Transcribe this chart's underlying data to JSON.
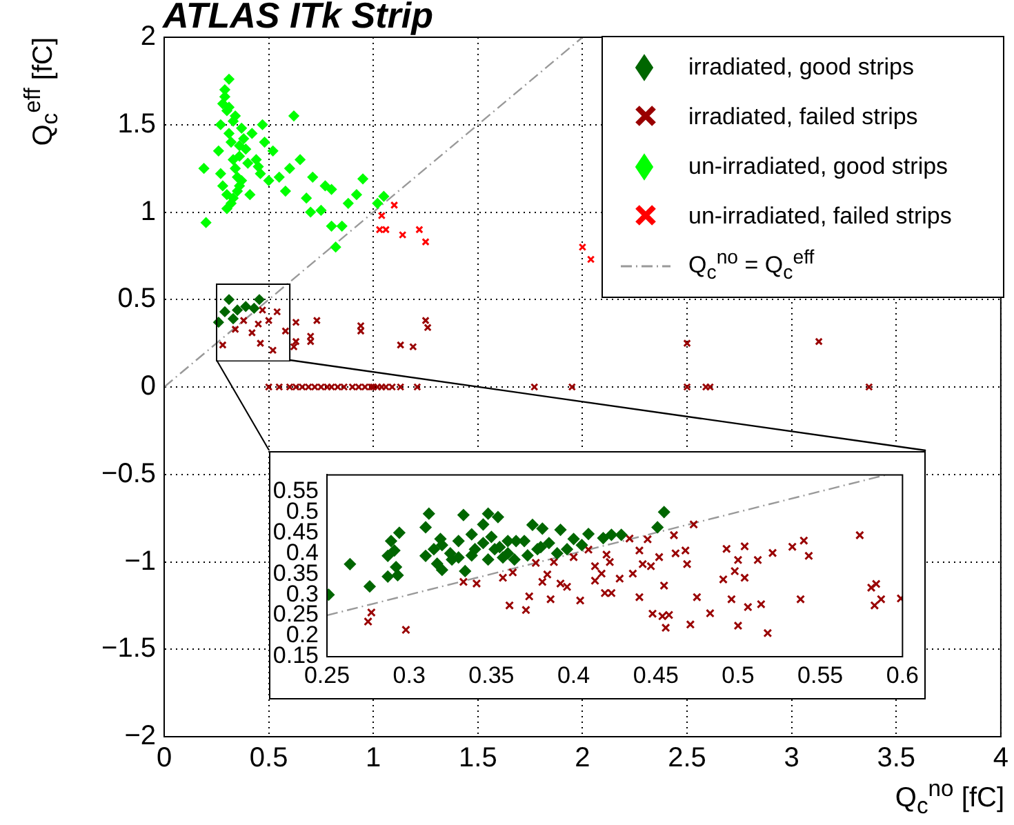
{
  "chart_data": [
    {
      "type": "scatter",
      "title": "ATLAS ITk Strip",
      "xlabel": "Q$_{c}$$^{no}$ [fC]",
      "ylabel": "Q$_{c}$$^{eff}$ [fC]",
      "xlim": [
        0,
        4
      ],
      "ylim": [
        -2,
        2
      ],
      "xticks": [
        0,
        0.5,
        1,
        1.5,
        2,
        2.5,
        3,
        3.5,
        4
      ],
      "yticks": [
        {
          "value": -2,
          "label": "−2"
        },
        {
          "value": -1.5,
          "label": "−1.5"
        },
        {
          "value": -1,
          "label": "−1"
        },
        {
          "value": -0.5,
          "label": "−0.5"
        },
        0,
        0.5,
        1,
        1.5,
        2
      ],
      "grid": true,
      "legend": "top right",
      "series": [
        {
          "name": "irradiated, good strips",
          "color": "#006600",
          "marker": "diamond",
          "x": [
            0.26,
            0.29,
            0.31,
            0.35,
            0.39,
            0.43,
            0.455,
            0.33
          ],
          "values": [
            0.37,
            0.43,
            0.5,
            0.44,
            0.46,
            0.45,
            0.5,
            0.39
          ]
        },
        {
          "name": "irradiated, failed strips",
          "color": "#990000",
          "marker": "cross",
          "x": [
            0.28,
            0.34,
            0.38,
            0.42,
            0.46,
            0.47,
            0.5,
            0.52,
            0.54,
            0.58,
            0.45,
            0.63,
            0.73,
            0.94,
            0.94,
            1.13,
            1.19,
            1.25,
            1.26,
            0.7,
            0.7,
            0.63,
            0.62,
            2.5,
            3.13,
            0.5,
            0.55,
            0.6,
            0.63,
            0.66,
            0.69,
            0.72,
            0.75,
            0.78,
            0.8,
            0.83,
            0.86,
            0.9,
            0.93,
            0.96,
            0.99,
            1.0,
            1.02,
            1.04,
            1.06,
            1.09,
            1.13,
            1.21,
            1.77,
            1.95,
            2.5,
            2.59,
            2.61,
            3.37
          ],
          "values": [
            0.24,
            0.33,
            0.38,
            0.31,
            0.25,
            0.44,
            0.38,
            0.21,
            0.43,
            0.32,
            0.36,
            0.37,
            0.38,
            0.35,
            0.32,
            0.24,
            0.23,
            0.38,
            0.34,
            0.29,
            0.26,
            0.26,
            0.23,
            0.25,
            0.26,
            0,
            0,
            0,
            0,
            0,
            0,
            0,
            0,
            0,
            0,
            0,
            0,
            0,
            0,
            0,
            0,
            0,
            0,
            0,
            0,
            0,
            0,
            0,
            0,
            0,
            0,
            0,
            0,
            0
          ]
        },
        {
          "name": "un-irradiated, good strips",
          "color": "#00ff00",
          "marker": "diamond",
          "x": [
            0.19,
            0.2,
            0.31,
            0.26,
            0.27,
            0.28,
            0.29,
            0.3,
            0.31,
            0.32,
            0.33,
            0.34,
            0.35,
            0.36,
            0.37,
            0.28,
            0.3,
            0.32,
            0.34,
            0.36,
            0.38,
            0.4,
            0.27,
            0.29,
            0.31,
            0.33,
            0.35,
            0.37,
            0.39,
            0.42,
            0.44,
            0.46,
            0.48,
            0.5,
            0.3,
            0.33,
            0.36,
            0.41,
            0.45,
            0.52,
            0.55,
            0.58,
            0.62,
            0.65,
            0.68,
            0.71,
            0.7,
            0.77,
            0.8,
            0.82,
            0.75,
            0.85,
            0.88,
            0.92,
            0.95,
            1.02,
            1.05,
            0.8,
            0.6,
            0.47
          ],
          "values": [
            1.25,
            0.94,
            1.76,
            1.35,
            1.5,
            1.62,
            1.7,
            1.58,
            1.45,
            1.4,
            1.3,
            1.55,
            1.2,
            1.38,
            1.48,
            1.15,
            1.1,
            1.05,
            1.25,
            1.32,
            1.42,
            1.28,
            1.22,
            1.66,
            1.6,
            1.52,
            1.12,
            1.18,
            1.36,
            1.45,
            1.3,
            1.22,
            1.4,
            1.18,
            1.02,
            1.08,
            1.15,
            1.1,
            1.26,
            1.35,
            1.2,
            1.12,
            1.55,
            1.3,
            1.08,
            1.2,
            1.0,
            1.15,
            1.13,
            0.8,
            1.01,
            0.92,
            1.05,
            1.1,
            1.19,
            1.05,
            1.09,
            0.92,
            1.25,
            1.5
          ]
        },
        {
          "name": "un-irradiated, failed strips",
          "color": "#ff0000",
          "marker": "cross",
          "x": [
            1.1,
            1.04,
            1.03,
            1.06,
            1.14,
            1.22,
            1.25,
            2.0,
            2.04
          ],
          "values": [
            1.04,
            0.98,
            0.9,
            0.9,
            0.87,
            0.9,
            0.83,
            0.8,
            0.73
          ]
        },
        {
          "name": "Q$_{c}$$^{no}$ = Q$_{c}$$^{eff}$",
          "type": "line",
          "color": "#999999",
          "line_style": "dashed",
          "x": [
            0,
            2
          ],
          "values": [
            0,
            2
          ]
        }
      ]
    },
    {
      "type": "scatter",
      "xlim": [
        0.25,
        0.6
      ],
      "ylim": [
        0.15,
        0.59
      ],
      "xticks": [
        0.25,
        0.3,
        0.35,
        0.4,
        0.45,
        0.5,
        0.55,
        0.6
      ],
      "yticks": [
        0.15,
        0.2,
        0.25,
        0.3,
        0.35,
        0.4,
        0.45,
        0.5,
        0.55
      ],
      "series": [
        {
          "color": "#006600",
          "marker": "diamond",
          "x": [
            0.251,
            0.264,
            0.276,
            0.287,
            0.289,
            0.287,
            0.291,
            0.292,
            0.294,
            0.293,
            0.312,
            0.31,
            0.31,
            0.315,
            0.317,
            0.319,
            0.32,
            0.326,
            0.333,
            0.334,
            0.338,
            0.345,
            0.348,
            0.352,
            0.354,
            0.357,
            0.36,
            0.364,
            0.37,
            0.375,
            0.378,
            0.381,
            0.385,
            0.392,
            0.396,
            0.4,
            0.405,
            0.409,
            0.418,
            0.423,
            0.429,
            0.451,
            0.455,
            0.32,
            0.33,
            0.34,
            0.35,
            0.36,
            0.33,
            0.345,
            0.355,
            0.365,
            0.325,
            0.338,
            0.348,
            0.372,
            0.38,
            0.39
          ],
          "values": [
            0.3,
            0.374,
            0.32,
            0.344,
            0.43,
            0.394,
            0.407,
            0.367,
            0.45,
            0.347,
            0.496,
            0.463,
            0.394,
            0.41,
            0.375,
            0.435,
            0.36,
            0.385,
            0.493,
            0.357,
            0.446,
            0.47,
            0.496,
            0.41,
            0.488,
            0.39,
            0.43,
            0.385,
            0.43,
            0.469,
            0.41,
            0.46,
            0.425,
            0.457,
            0.41,
            0.435,
            0.42,
            0.447,
            0.437,
            0.445,
            0.445,
            0.463,
            0.5,
            0.42,
            0.43,
            0.41,
            0.44,
            0.4,
            0.39,
            0.425,
            0.415,
            0.43,
            0.4,
            0.395,
            0.385,
            0.395,
            0.415,
            0.4
          ]
        },
        {
          "color": "#990000",
          "marker": "cross",
          "x": [
            0.275,
            0.277,
            0.298,
            0.333,
            0.341,
            0.357,
            0.361,
            0.363,
            0.371,
            0.373,
            0.377,
            0.381,
            0.384,
            0.386,
            0.388,
            0.392,
            0.396,
            0.4,
            0.404,
            0.409,
            0.413,
            0.413,
            0.417,
            0.419,
            0.42,
            0.423,
            0.422,
            0.428,
            0.434,
            0.436,
            0.44,
            0.44,
            0.442,
            0.445,
            0.447,
            0.448,
            0.452,
            0.455,
            0.454,
            0.456,
            0.458,
            0.461,
            0.462,
            0.468,
            0.469,
            0.471,
            0.473,
            0.475,
            0.483,
            0.491,
            0.493,
            0.496,
            0.498,
            0.5,
            0.5,
            0.504,
            0.504,
            0.506,
            0.512,
            0.514,
            0.518,
            0.521,
            0.533,
            0.538,
            0.54,
            0.543,
            0.574,
            0.581,
            0.583,
            0.584,
            0.587,
            0.599
          ],
          "values": [
            0.235,
            0.257,
            0.215,
            0.331,
            0.327,
            0.341,
            0.274,
            0.354,
            0.263,
            0.296,
            0.377,
            0.331,
            0.349,
            0.289,
            0.379,
            0.327,
            0.319,
            0.391,
            0.286,
            0.409,
            0.334,
            0.369,
            0.351,
            0.304,
            0.397,
            0.304,
            0.379,
            0.339,
            0.436,
            0.351,
            0.294,
            0.407,
            0.374,
            0.434,
            0.369,
            0.254,
            0.391,
            0.322,
            0.248,
            0.22,
            0.251,
            0.444,
            0.4,
            0.407,
            0.374,
            0.228,
            0.47,
            0.294,
            0.255,
            0.337,
            0.411,
            0.289,
            0.357,
            0.384,
            0.225,
            0.417,
            0.341,
            0.27,
            0.384,
            0.277,
            0.207,
            0.401,
            0.416,
            0.289,
            0.431,
            0.394,
            0.444,
            0.317,
            0.274,
            0.326,
            0.289,
            0.291
          ]
        },
        {
          "type": "line",
          "color": "#999999",
          "line_style": "dashed",
          "x": [
            0.25,
            0.59
          ],
          "values": [
            0.25,
            0.59
          ]
        }
      ]
    }
  ]
}
